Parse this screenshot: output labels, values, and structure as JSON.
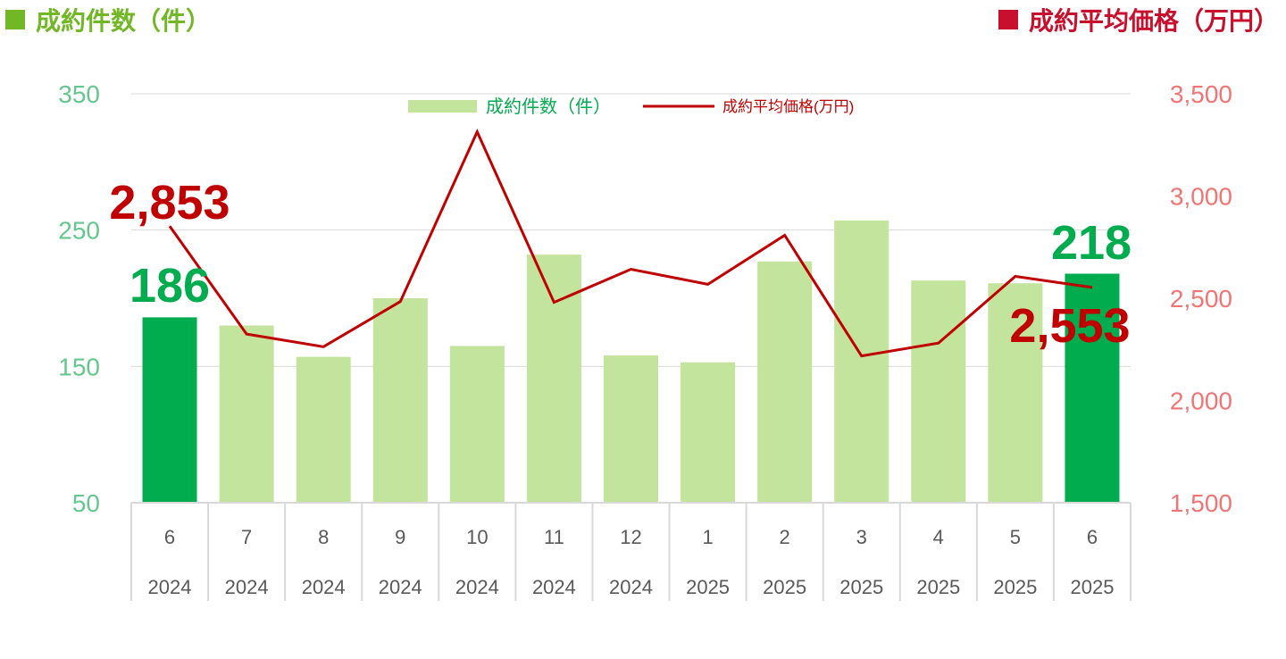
{
  "headings": {
    "left": {
      "label": "成約件数（件）",
      "color": "#72b726"
    },
    "right": {
      "label": "成約平均価格（万円）",
      "color": "#c8102e"
    }
  },
  "chart_data": {
    "type": "bar+line",
    "categories": [
      [
        "6",
        "2024"
      ],
      [
        "7",
        "2024"
      ],
      [
        "8",
        "2024"
      ],
      [
        "9",
        "2024"
      ],
      [
        "10",
        "2024"
      ],
      [
        "11",
        "2024"
      ],
      [
        "12",
        "2024"
      ],
      [
        "1",
        "2025"
      ],
      [
        "2",
        "2025"
      ],
      [
        "3",
        "2025"
      ],
      [
        "4",
        "2025"
      ],
      [
        "5",
        "2025"
      ],
      [
        "6",
        "2025"
      ]
    ],
    "series": [
      {
        "name": "成約件数（件）",
        "type": "bar",
        "axis": "left",
        "values": [
          186,
          180,
          157,
          200,
          165,
          232,
          158,
          153,
          227,
          257,
          213,
          211,
          218
        ],
        "color": "#c3e49c",
        "highlight_color": "#00ac4e",
        "highlight_indices": [
          0,
          12
        ]
      },
      {
        "name": "成約平均価格(万円)",
        "type": "line",
        "axis": "right",
        "values": [
          2853,
          2325,
          2263,
          2484,
          3314,
          2480,
          2642,
          2568,
          2808,
          2218,
          2281,
          2607,
          2553
        ],
        "color": "#c00000"
      }
    ],
    "y_left": {
      "min": 50,
      "max": 350,
      "ticks": [
        "350",
        "250",
        "150",
        "50"
      ],
      "tick_values": [
        350,
        250,
        150,
        50
      ],
      "color": "#66c68e"
    },
    "y_right": {
      "min": 1500,
      "max": 3500,
      "ticks": [
        "3,500",
        "3,000",
        "2,500",
        "2,000",
        "1,500"
      ],
      "tick_values": [
        3500,
        3000,
        2500,
        2000,
        1500
      ],
      "color": "#f27474"
    },
    "gridlines": "horizontal",
    "legend": {
      "placement": "top-center"
    },
    "annotations": [
      {
        "text": "2,853",
        "series": 1,
        "index": 0,
        "color": "#c00000"
      },
      {
        "text": "186",
        "series": 0,
        "index": 0,
        "color": "#00ac4e"
      },
      {
        "text": "218",
        "series": 0,
        "index": 12,
        "color": "#00ac4e"
      },
      {
        "text": "2,553",
        "series": 1,
        "index": 12,
        "color": "#c00000"
      }
    ]
  }
}
